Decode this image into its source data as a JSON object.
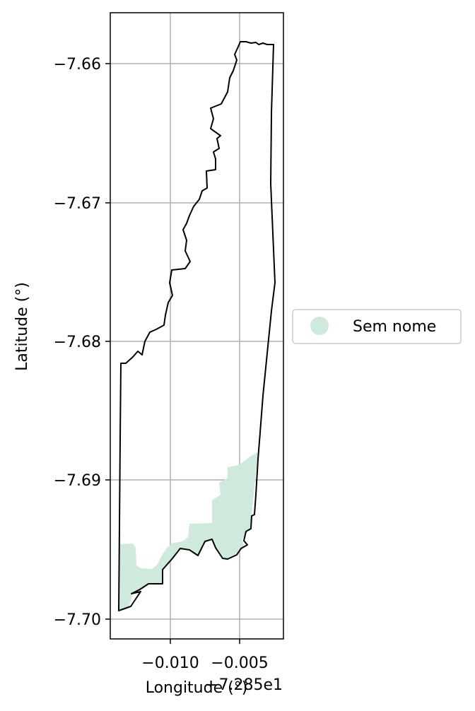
{
  "chart_data": {
    "type": "map",
    "xlabel": "Longitude (°)",
    "ylabel": "Latitude (°)",
    "x_offset_label": "−7.285e1",
    "xlim": [
      -72.8642,
      -72.8469
    ],
    "ylim": [
      -7.7015,
      -7.6563
    ],
    "x_ticks": [
      {
        "value": -72.86,
        "label": "−0.010"
      },
      {
        "value": -72.855,
        "label": "−0.005"
      }
    ],
    "y_ticks": [
      {
        "value": -7.66,
        "label": "−7.66"
      },
      {
        "value": -7.67,
        "label": "−7.67"
      },
      {
        "value": -7.68,
        "label": "−7.68"
      },
      {
        "value": -7.69,
        "label": "−7.69"
      },
      {
        "value": -7.7,
        "label": "−7.70"
      }
    ],
    "grid": true,
    "legend": {
      "placement": "center-right outside",
      "entries": [
        {
          "label": "Sem nome",
          "color": "#cfeadc"
        }
      ]
    },
    "boundary_color": "#000000",
    "area_color": "#cfeadc"
  }
}
